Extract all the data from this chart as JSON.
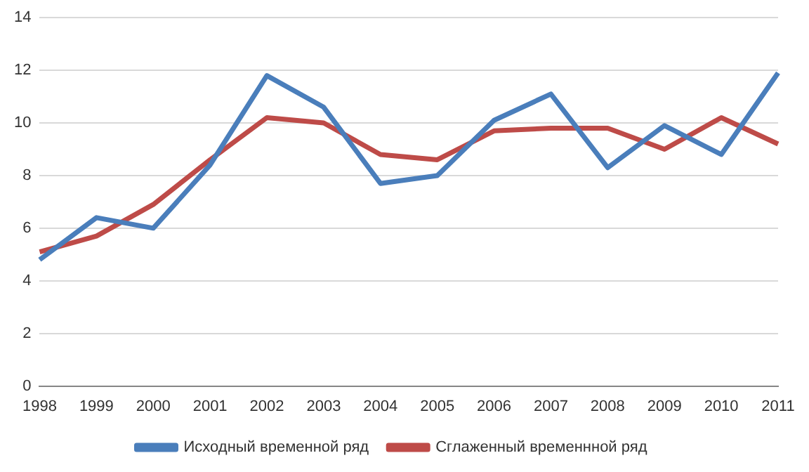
{
  "chart_data": {
    "type": "line",
    "categories": [
      "1998",
      "1999",
      "2000",
      "2001",
      "2002",
      "2003",
      "2004",
      "2005",
      "2006",
      "2007",
      "2008",
      "2009",
      "2010",
      "2011"
    ],
    "series": [
      {
        "name": "Исходный временной ряд",
        "color": "#4a7ebb",
        "values": [
          4.8,
          6.4,
          6.0,
          8.4,
          11.8,
          10.6,
          7.7,
          8.0,
          10.1,
          11.1,
          8.3,
          9.9,
          8.8,
          11.9
        ]
      },
      {
        "name": "Сглаженный временнной ряд",
        "color": "#be4b48",
        "values": [
          5.1,
          5.7,
          6.9,
          8.6,
          10.2,
          10.0,
          8.8,
          8.6,
          9.7,
          9.8,
          9.8,
          9.0,
          10.2,
          9.2
        ]
      }
    ],
    "ylim": [
      0,
      14
    ],
    "yticks": [
      0,
      2,
      4,
      6,
      8,
      10,
      12,
      14
    ],
    "grid": "y",
    "legend": "bottom",
    "marker": "none",
    "line_style": "solid"
  }
}
